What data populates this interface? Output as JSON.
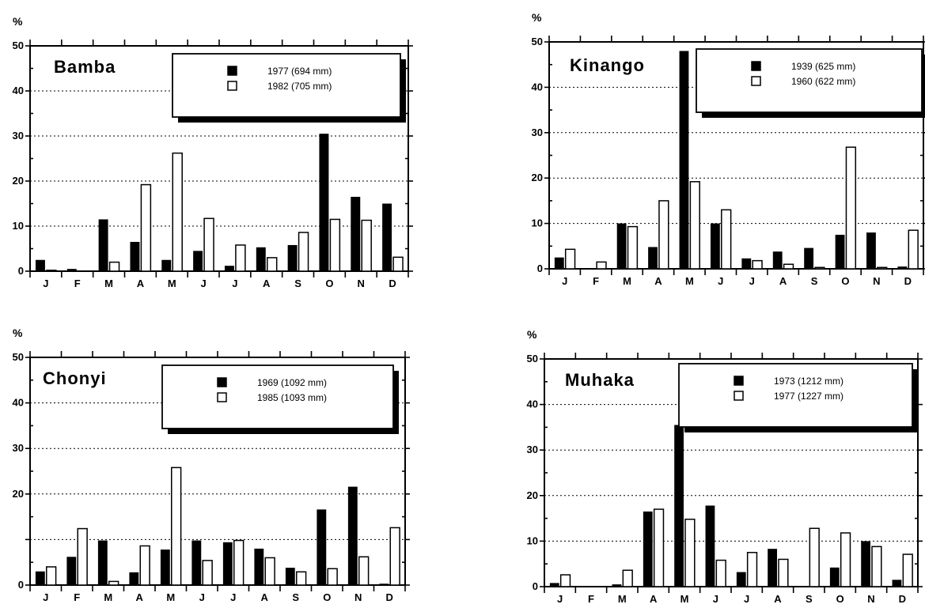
{
  "figure": {
    "months": [
      "J",
      "F",
      "M",
      "A",
      "M",
      "J",
      "J",
      "A",
      "S",
      "O",
      "N",
      "D"
    ],
    "y_unit": "%"
  },
  "chart_data": [
    {
      "type": "bar",
      "title": "Bamba",
      "categories": [
        "J",
        "F",
        "M",
        "A",
        "M",
        "J",
        "J",
        "A",
        "S",
        "O",
        "N",
        "D"
      ],
      "ylabel": "%",
      "ylim": [
        0,
        50
      ],
      "yticks": [
        0,
        10,
        20,
        30,
        40,
        50
      ],
      "grid": "dotted horizontal",
      "legend": "top-right",
      "series": [
        {
          "name": "1977 (694 mm)",
          "style": "filled",
          "color": "#000000",
          "values": [
            2.5,
            0.5,
            11.5,
            6.5,
            2.5,
            4.5,
            1.2,
            5.3,
            5.8,
            30.5,
            16.5,
            15
          ]
        },
        {
          "name": "1982 (705 mm)",
          "style": "open",
          "color": "#ffffff",
          "values": [
            0.2,
            0,
            2,
            19.2,
            26.2,
            11.7,
            5.8,
            3,
            8.6,
            11.5,
            11.3,
            3.1
          ]
        }
      ]
    },
    {
      "type": "bar",
      "title": "Kinango",
      "categories": [
        "J",
        "F",
        "M",
        "A",
        "M",
        "J",
        "J",
        "A",
        "S",
        "O",
        "N",
        "D"
      ],
      "ylabel": "%",
      "ylim": [
        0,
        50
      ],
      "yticks": [
        0,
        10,
        20,
        30,
        40,
        50
      ],
      "grid": "dotted horizontal",
      "legend": "top-right",
      "series": [
        {
          "name": "1939 (625 mm)",
          "style": "filled",
          "color": "#000000",
          "values": [
            2.5,
            0,
            10,
            4.8,
            48,
            10,
            2.3,
            3.8,
            4.6,
            7.5,
            8,
            0.5
          ]
        },
        {
          "name": "1960 (622 mm)",
          "style": "open",
          "color": "#ffffff",
          "values": [
            4.3,
            1.5,
            9.3,
            15,
            19.2,
            13,
            1.8,
            1,
            0.3,
            26.8,
            0.3,
            8.5
          ]
        }
      ]
    },
    {
      "type": "bar",
      "title": "Chonyi",
      "categories": [
        "J",
        "F",
        "M",
        "A",
        "M",
        "J",
        "J",
        "A",
        "S",
        "O",
        "N",
        "D"
      ],
      "ylabel": "%",
      "ylim": [
        0,
        50
      ],
      "yticks": [
        0,
        10,
        20,
        30,
        40,
        50
      ],
      "ytick_labels": [
        "0",
        "",
        "20",
        "30",
        "40",
        "50"
      ],
      "grid": "dotted horizontal",
      "legend": "top-right",
      "series": [
        {
          "name": "1969 (1092 mm)",
          "style": "filled",
          "color": "#000000",
          "values": [
            3,
            6.2,
            9.8,
            2.8,
            7.8,
            9.8,
            9.4,
            8,
            3.8,
            16.6,
            21.6,
            0.3
          ]
        },
        {
          "name": "1985 (1093 mm)",
          "style": "open",
          "color": "#ffffff",
          "values": [
            4,
            12.4,
            0.8,
            8.6,
            25.8,
            5.4,
            9.8,
            6,
            2.9,
            3.6,
            6.2,
            12.6
          ]
        }
      ]
    },
    {
      "type": "bar",
      "title": "Muhaka",
      "categories": [
        "J",
        "F",
        "M",
        "A",
        "M",
        "J",
        "J",
        "A",
        "S",
        "O",
        "N",
        "D"
      ],
      "ylabel": "%",
      "ylim": [
        0,
        50
      ],
      "yticks": [
        0,
        10,
        20,
        30,
        40,
        50
      ],
      "grid": "dotted horizontal",
      "legend": "top-right",
      "series": [
        {
          "name": "1973 (1212 mm)",
          "style": "filled",
          "color": "#000000",
          "values": [
            0.8,
            0,
            0.5,
            16.5,
            35.5,
            17.8,
            3.2,
            8.3,
            0,
            4.2,
            10,
            1.5
          ]
        },
        {
          "name": "1977 (1227 mm)",
          "style": "open",
          "color": "#ffffff",
          "values": [
            2.6,
            0,
            3.6,
            17,
            14.8,
            5.8,
            7.5,
            6,
            12.8,
            11.8,
            8.8,
            7.1
          ]
        }
      ]
    }
  ]
}
